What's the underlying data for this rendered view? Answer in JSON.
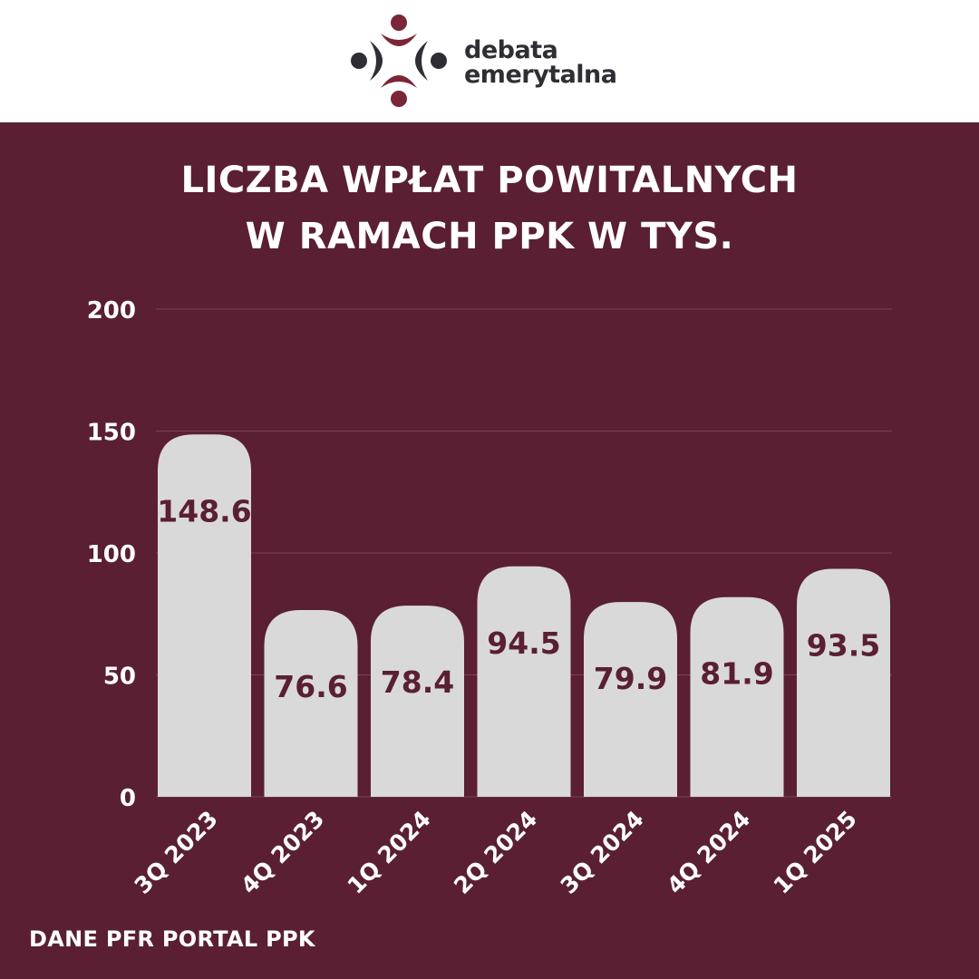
{
  "brand": {
    "logo_line1": "debata",
    "logo_line2": "emerytalna",
    "logo_dark_color": "#2e2e34",
    "logo_accent_color": "#7a2638"
  },
  "title_line1": "LICZBA WPŁAT POWITALNYCH",
  "title_line2": "W RAMACH PPK W TYS.",
  "source": "DANE PFR PORTAL PPK",
  "colors": {
    "background": "#5a1f32",
    "bar": "#d9d9d9",
    "value_label": "#5a1f32",
    "text": "#ffffff",
    "grid": "#7a4256"
  },
  "chart_data": {
    "type": "bar",
    "categories": [
      "3Q 2023",
      "4Q 2023",
      "1Q 2024",
      "2Q 2024",
      "3Q 2024",
      "4Q 2024",
      "1Q 2025"
    ],
    "values": [
      148.6,
      76.6,
      78.4,
      94.5,
      79.9,
      81.9,
      93.5
    ],
    "yticks": [
      0,
      50,
      100,
      150,
      200
    ],
    "ylim": [
      0,
      200
    ],
    "grid": true,
    "legend": false
  }
}
